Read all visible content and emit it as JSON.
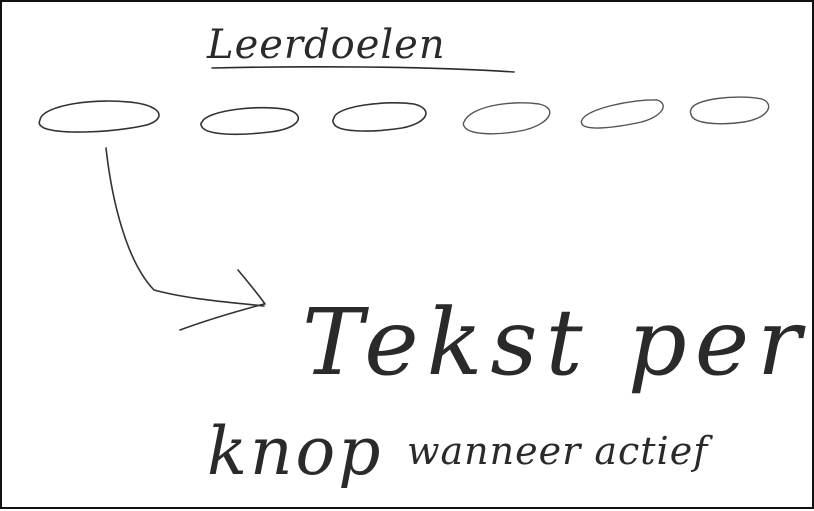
{
  "sketch": {
    "title": "Leerdoelen",
    "annotation_line1": "Tekst per",
    "annotation_line2_a": "knop",
    "annotation_line2_b": "wanneer actief",
    "button_count": 6,
    "ink_color": "#2a2a2a",
    "light_ink_color": "#555555"
  }
}
